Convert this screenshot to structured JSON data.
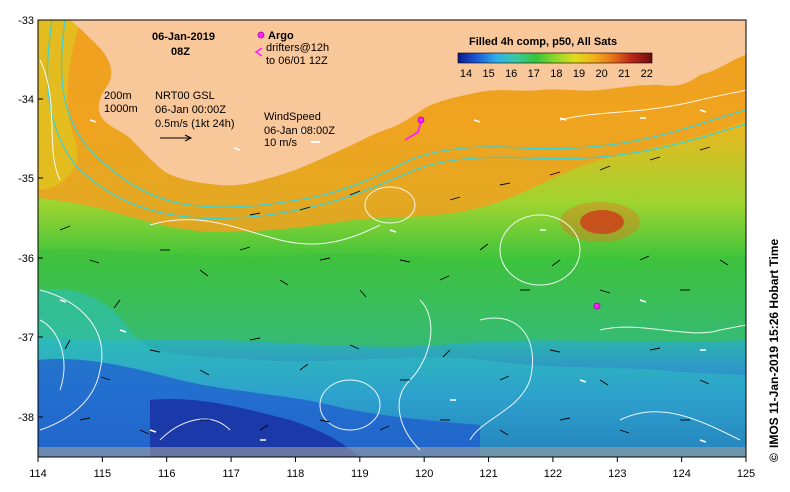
{
  "map": {
    "date": "06-Jan-2019",
    "time": "08Z",
    "argo_label": "Argo",
    "drifters_label": "drifters@12h",
    "drifters_to": "to 06/01 12Z",
    "colorbar": {
      "title": "Filled 4h comp, p50, All Sats",
      "ticks": [
        "14",
        "15",
        "16",
        "17",
        "18",
        "19",
        "20",
        "21",
        "22"
      ],
      "colors": [
        "#0a1a8c",
        "#1f5bd8",
        "#2fb0e8",
        "#3cc8a0",
        "#34c43c",
        "#8fd62a",
        "#e0dc1e",
        "#f2b21a",
        "#e8701a",
        "#b8221a",
        "#6a1010"
      ]
    },
    "depth_labels": [
      "200m",
      "1000m"
    ],
    "current_block": {
      "line1": "NRT00 GSL",
      "line2": "06-Jan 00:00Z",
      "line3": "0.5m/s (1kt 24h)"
    },
    "wind_block": {
      "line1": "WindSpeed",
      "line2": "06-Jan 08:00Z",
      "line3": "10 m/s"
    },
    "y_ticks": [
      "-33",
      "-34",
      "-35",
      "-36",
      "-37",
      "-38"
    ],
    "x_ticks": [
      "114",
      "115",
      "116",
      "117",
      "118",
      "119",
      "120",
      "121",
      "122",
      "123",
      "124",
      "125"
    ],
    "credit": "IMOS 11-Jan-2019 15:26 Hobart Time",
    "copyright": "©",
    "land_color": "#f8c79a"
  }
}
